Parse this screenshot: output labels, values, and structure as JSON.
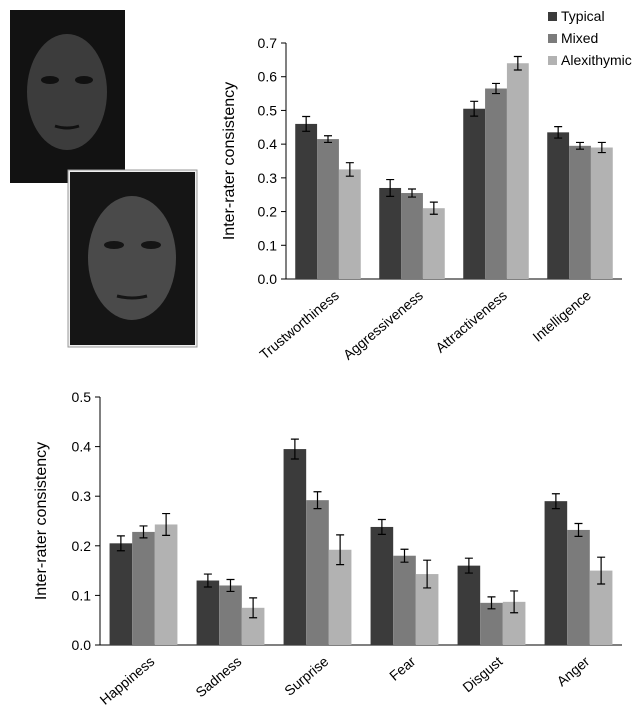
{
  "chart_data": [
    {
      "type": "bar",
      "ylabel": "Inter-rater consistency",
      "categories": [
        "Trustworthiness",
        "Aggressiveness",
        "Attractiveness",
        "Intelligence"
      ],
      "series": [
        {
          "name": "Typical",
          "color": "#3b3b3b",
          "values": [
            0.46,
            0.27,
            0.505,
            0.435
          ],
          "errors": [
            0.022,
            0.025,
            0.022,
            0.017
          ]
        },
        {
          "name": "Mixed",
          "color": "#7b7b7b",
          "values": [
            0.415,
            0.255,
            0.565,
            0.395
          ],
          "errors": [
            0.01,
            0.012,
            0.015,
            0.01
          ]
        },
        {
          "name": "Alexithymic",
          "color": "#b2b2b2",
          "values": [
            0.325,
            0.21,
            0.64,
            0.39
          ],
          "errors": [
            0.02,
            0.018,
            0.02,
            0.015
          ]
        }
      ],
      "ylim": [
        0,
        0.7
      ],
      "yticks": [
        {
          "value": 0,
          "label": "0.0"
        },
        0.1,
        0.2,
        0.3,
        0.4,
        0.5,
        0.6,
        0.7
      ],
      "legend": "upper right"
    },
    {
      "type": "bar",
      "ylabel": "Inter-rater consistency",
      "categories": [
        "Happiness",
        "Sadness",
        "Surprise",
        "Fear",
        "Disgust",
        "Anger"
      ],
      "series": [
        {
          "color": "#3b3b3b",
          "values": [
            0.205,
            0.13,
            0.395,
            0.238,
            0.16,
            0.29
          ],
          "errors": [
            0.015,
            0.013,
            0.02,
            0.015,
            0.015,
            0.015
          ]
        },
        {
          "color": "#7b7b7b",
          "values": [
            0.228,
            0.12,
            0.292,
            0.18,
            0.085,
            0.232
          ],
          "errors": [
            0.012,
            0.012,
            0.017,
            0.013,
            0.012,
            0.013
          ]
        },
        {
          "color": "#b2b2b2",
          "values": [
            0.243,
            0.075,
            0.192,
            0.143,
            0.087,
            0.15
          ],
          "errors": [
            0.022,
            0.02,
            0.03,
            0.028,
            0.022,
            0.027
          ]
        }
      ],
      "ylim": [
        0,
        0.5
      ],
      "yticks": [
        {
          "value": 0,
          "label": "0.0"
        },
        0.1,
        0.2,
        0.3,
        0.4,
        0.5
      ]
    }
  ]
}
